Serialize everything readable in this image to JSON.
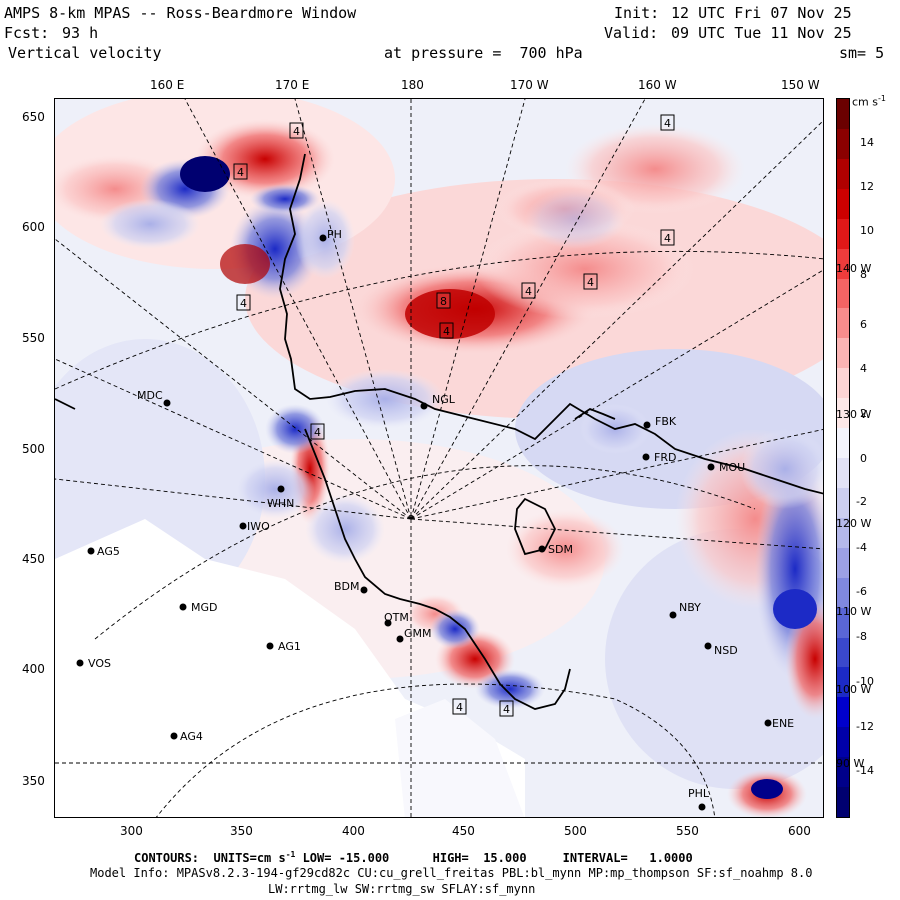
{
  "header": {
    "title": "AMPS 8-km MPAS -- Ross-Beardmore Window",
    "forecast_label": "Fcst:",
    "forecast_value": "93 h",
    "field_name": "Vertical velocity",
    "init_label": "Init:",
    "init_value": "12 UTC Fri 07 Nov 25",
    "valid_label": "Valid:",
    "valid_value": "09 UTC Tue 11 Nov 25",
    "pressure_text": "at pressure =  700 hPa",
    "smoothing_text": "sm= 5"
  },
  "axes": {
    "top_longitudes": [
      "160 E",
      "170 E",
      "180",
      "170 W",
      "160 W",
      "150 W"
    ],
    "x_ticks": [
      "300",
      "350",
      "400",
      "450",
      "500",
      "550",
      "600"
    ],
    "y_ticks": [
      "650",
      "600",
      "550",
      "500",
      "450",
      "400",
      "350"
    ],
    "right_longitudes": [
      "140 W",
      "130 W",
      "120 W",
      "110 W",
      "100 W",
      "90 W"
    ]
  },
  "colorbar": {
    "units_label": "cm s",
    "units_exp": "-1",
    "labels": [
      "14",
      "12",
      "10",
      "8",
      "6",
      "4",
      "2",
      "0",
      "-2",
      "-4",
      "-6",
      "-8",
      "-10",
      "-12",
      "-14"
    ],
    "colors": [
      "#6b0000",
      "#8b0000",
      "#b00000",
      "#cc0000",
      "#e01818",
      "#ee3c3c",
      "#f46464",
      "#f88c8c",
      "#fbb4b4",
      "#fdd4d4",
      "#fde8e8",
      "#f4f4fc",
      "#e2e2f6",
      "#cccef0",
      "#b4b8ea",
      "#9ca0e4",
      "#8088de",
      "#5a66d6",
      "#3a48cc",
      "#1c2ac6",
      "#0000cc",
      "#0000a8",
      "#00008a",
      "#000070"
    ]
  },
  "stations": [
    {
      "id": "MDC"
    },
    {
      "id": "NGL"
    },
    {
      "id": "FBK"
    },
    {
      "id": "FRD"
    },
    {
      "id": "MOU"
    },
    {
      "id": "WHN"
    },
    {
      "id": "IWO"
    },
    {
      "id": "AG5"
    },
    {
      "id": "SDM"
    },
    {
      "id": "BDM"
    },
    {
      "id": "MGD"
    },
    {
      "id": "OTM"
    },
    {
      "id": "GMM"
    },
    {
      "id": "NBY"
    },
    {
      "id": "AG1"
    },
    {
      "id": "VOS"
    },
    {
      "id": "NSD"
    },
    {
      "id": "AG4"
    },
    {
      "id": "ENE"
    },
    {
      "id": "PHL"
    },
    {
      "id": "PH"
    }
  ],
  "contour_labels": [
    "4",
    "4",
    "4",
    "4",
    "4",
    "4",
    "4",
    "8",
    "4",
    "4",
    "4",
    "4"
  ],
  "footer": {
    "contours_line": "CONTOURS:  UNITS=cm s",
    "contours_exp": "-1",
    "contours_rest": " LOW= -15.000      HIGH=  15.000     INTERVAL=   1.0000",
    "model_info": "Model Info: MPASv8.2.3-194-gf29cd82c CU:cu_grell_freitas PBL:bl_mynn MP:mp_thompson SF:sf_noahmp 8.0",
    "model_info2": "LW:rrtmg_lw SW:rrtmg_sw SFLAY:sf_mynn"
  }
}
